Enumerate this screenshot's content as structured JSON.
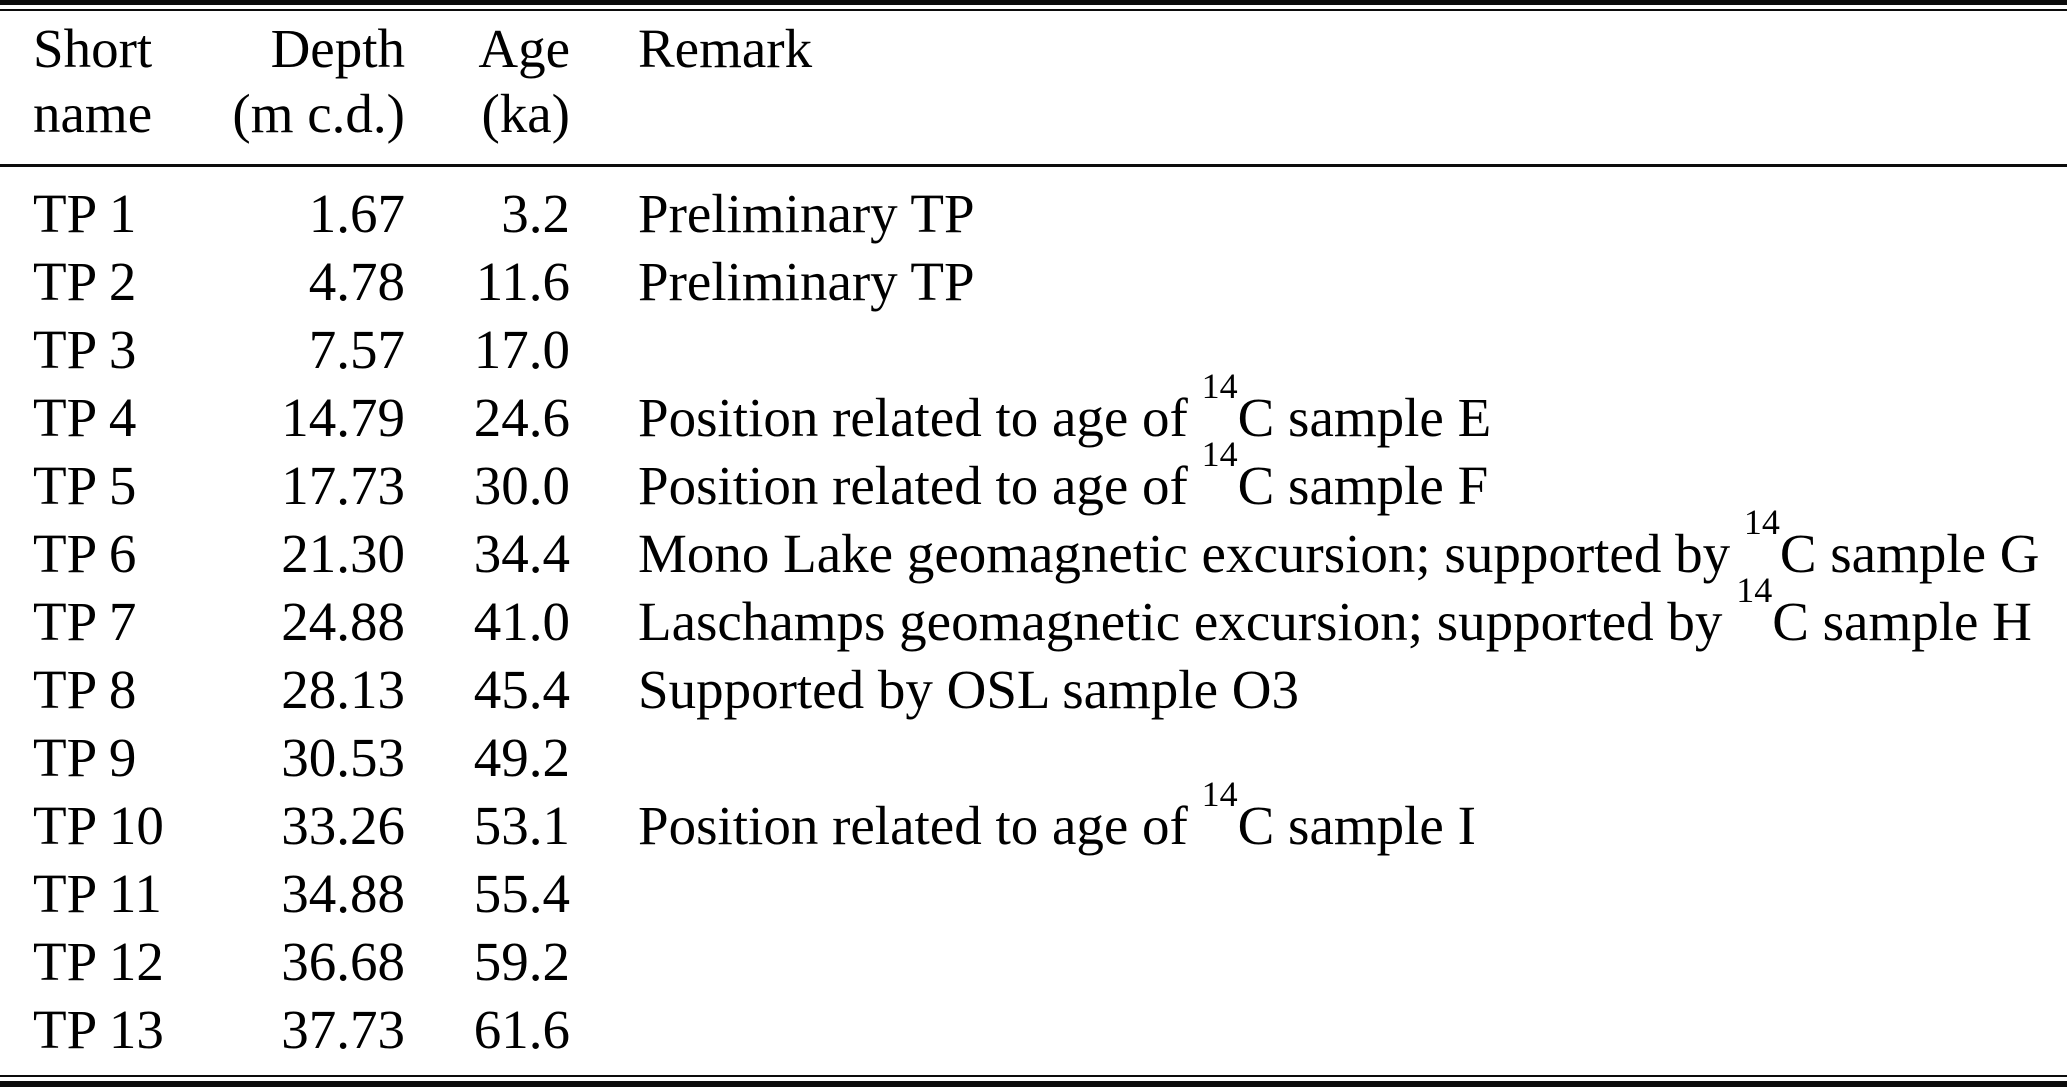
{
  "table": {
    "headers": {
      "short_name": {
        "line1": "Short",
        "line2": "name"
      },
      "depth": {
        "line1": "Depth",
        "line2": "(m c.d.)"
      },
      "age": {
        "line1": "Age",
        "line2": "(ka)"
      },
      "remark": {
        "line1": "Remark",
        "line2": ""
      }
    },
    "rows": [
      {
        "short_name": "TP 1",
        "depth": "1.67",
        "age": "3.2",
        "remark": {
          "pre": "Preliminary TP",
          "sup": "",
          "post": ""
        }
      },
      {
        "short_name": "TP 2",
        "depth": "4.78",
        "age": "11.6",
        "remark": {
          "pre": "Preliminary TP",
          "sup": "",
          "post": ""
        }
      },
      {
        "short_name": "TP 3",
        "depth": "7.57",
        "age": "17.0",
        "remark": {
          "pre": "",
          "sup": "",
          "post": ""
        }
      },
      {
        "short_name": "TP 4",
        "depth": "14.79",
        "age": "24.6",
        "remark": {
          "pre": "Position related to age of ",
          "sup": "14",
          "post": "C sample E"
        }
      },
      {
        "short_name": "TP 5",
        "depth": "17.73",
        "age": "30.0",
        "remark": {
          "pre": "Position related to age of ",
          "sup": "14",
          "post": "C sample F"
        }
      },
      {
        "short_name": "TP 6",
        "depth": "21.30",
        "age": "34.4",
        "remark": {
          "pre": "Mono Lake geomagnetic excursion; supported by ",
          "sup": "14",
          "post": "C sample G"
        }
      },
      {
        "short_name": "TP 7",
        "depth": "24.88",
        "age": "41.0",
        "remark": {
          "pre": "Laschamps geomagnetic excursion; supported by ",
          "sup": "14",
          "post": "C sample H"
        }
      },
      {
        "short_name": "TP 8",
        "depth": "28.13",
        "age": "45.4",
        "remark": {
          "pre": "Supported by OSL sample O3",
          "sup": "",
          "post": ""
        }
      },
      {
        "short_name": "TP 9",
        "depth": "30.53",
        "age": "49.2",
        "remark": {
          "pre": "",
          "sup": "",
          "post": ""
        }
      },
      {
        "short_name": "TP 10",
        "depth": "33.26",
        "age": "53.1",
        "remark": {
          "pre": "Position related to age of ",
          "sup": "14",
          "post": "C sample I"
        }
      },
      {
        "short_name": "TP 11",
        "depth": "34.88",
        "age": "55.4",
        "remark": {
          "pre": "",
          "sup": "",
          "post": ""
        }
      },
      {
        "short_name": "TP 12",
        "depth": "36.68",
        "age": "59.2",
        "remark": {
          "pre": "",
          "sup": "",
          "post": ""
        }
      },
      {
        "short_name": "TP 13",
        "depth": "37.73",
        "age": "61.6",
        "remark": {
          "pre": "",
          "sup": "",
          "post": ""
        }
      }
    ]
  },
  "colors": {
    "text": "#000000",
    "background": "#ffffff",
    "rule": "#0c0c0c"
  }
}
